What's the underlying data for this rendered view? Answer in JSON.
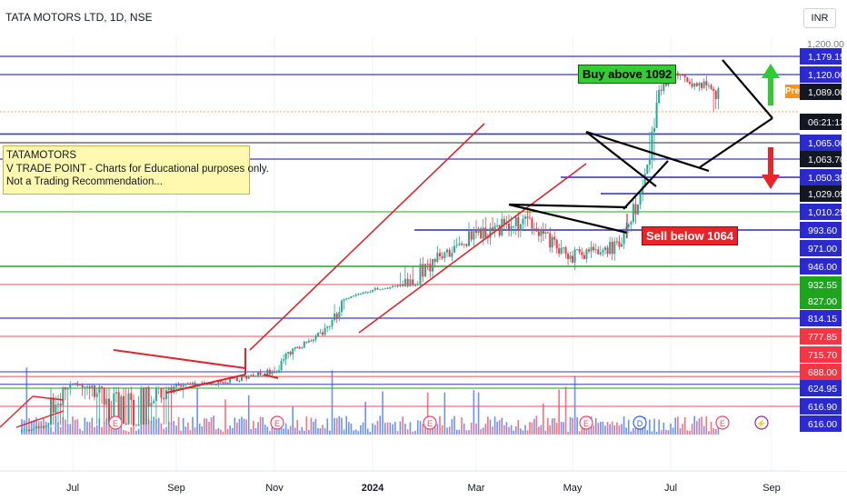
{
  "header": {
    "symbol_title": "TATA MOTORS LTD, 1D, NSE",
    "currency_button": "INR",
    "pre_badge": "Pre"
  },
  "note": {
    "line1": "TATAMOTORS",
    "line2": "V TRADE POINT - Charts for Educational purposes only.",
    "line3": "Not a Trading Recommendation..."
  },
  "annotations": {
    "buy": "Buy above 1092",
    "sell": "Sell below 1064"
  },
  "colors": {
    "up": "#22ab94",
    "down": "#f23645",
    "blue_level": "#3a3acb",
    "green_level": "#1ea51e",
    "red_level": "#e8505b",
    "trendline": "#e0262d",
    "pattern": "#000000",
    "volume_up": "#2962ff",
    "volume_down": "#f23645"
  },
  "chart_data": {
    "type": "candlestick",
    "title": "TATA MOTORS LTD, 1D, NSE",
    "x_tick_labels": [
      "Jul",
      "Sep",
      "Nov",
      "2024",
      "Mar",
      "May",
      "Jul",
      "Sep"
    ],
    "x_ticks_month_index": [
      0,
      2,
      4,
      6,
      8,
      10,
      12,
      14
    ],
    "y_axis_top_label": "1,200.00",
    "price_levels": [
      {
        "label": "1,179.15",
        "value": 1179.15,
        "style": "blue"
      },
      {
        "label": "1,120.00",
        "value": 1120.0,
        "style": "blue"
      },
      {
        "label": "1,089.00",
        "value": 1089.0,
        "style": "orange-pre"
      },
      {
        "label": "1,089.00",
        "value": 1089.0,
        "style": "last-price"
      },
      {
        "label": "06:21:13",
        "value": 1077.0,
        "style": "countdown"
      },
      {
        "label": "1,065.00",
        "value": 1065.0,
        "style": "blue"
      },
      {
        "label": "1,063.70",
        "value": 1063.7,
        "style": "black"
      },
      {
        "label": "1,050.35",
        "value": 1050.35,
        "style": "blue"
      },
      {
        "label": "1,029.05",
        "value": 1029.05,
        "style": "black"
      },
      {
        "label": "1,010.25",
        "value": 1010.25,
        "style": "blue"
      },
      {
        "label": "993.60",
        "value": 993.6,
        "style": "blue"
      },
      {
        "label": "971.00",
        "value": 971.0,
        "style": "blue"
      },
      {
        "label": "946.00",
        "value": 946.0,
        "style": "blue"
      },
      {
        "label": "932.55",
        "value": 932.55,
        "style": "green"
      },
      {
        "label": "827.00",
        "value": 827.0,
        "style": "green"
      },
      {
        "label": "814.15",
        "value": 814.15,
        "style": "blue"
      },
      {
        "label": "777.85",
        "value": 777.85,
        "style": "red"
      },
      {
        "label": "715.70",
        "value": 715.7,
        "style": "red"
      },
      {
        "label": "688.00",
        "value": 688.0,
        "style": "red"
      },
      {
        "label": "624.95",
        "value": 624.95,
        "style": "blue"
      },
      {
        "label": "616.90",
        "value": 616.9,
        "style": "blue"
      },
      {
        "label": "616.00",
        "value": 616.0,
        "style": "blue"
      }
    ],
    "close_series_by_month": [
      {
        "month": "Jun",
        "close": 575
      },
      {
        "month": "Jul",
        "close": 640
      },
      {
        "month": "Aug",
        "close": 612
      },
      {
        "month": "Sep",
        "close": 632
      },
      {
        "month": "Oct",
        "close": 650
      },
      {
        "month": "Nov",
        "close": 690
      },
      {
        "month": "Dec",
        "close": 790
      },
      {
        "month": "Jan",
        "close": 900
      },
      {
        "month": "Feb",
        "close": 945
      },
      {
        "month": "Mar",
        "close": 990
      },
      {
        "month": "Apr",
        "close": 1000
      },
      {
        "month": "May",
        "close": 960
      },
      {
        "month": "Jun",
        "close": 975
      },
      {
        "month": "Jul",
        "close": 1120
      },
      {
        "month": "Aug",
        "close": 1089
      }
    ],
    "event_markers": [
      "E",
      "E",
      "E",
      "E",
      "D",
      "E",
      "⚡"
    ]
  }
}
